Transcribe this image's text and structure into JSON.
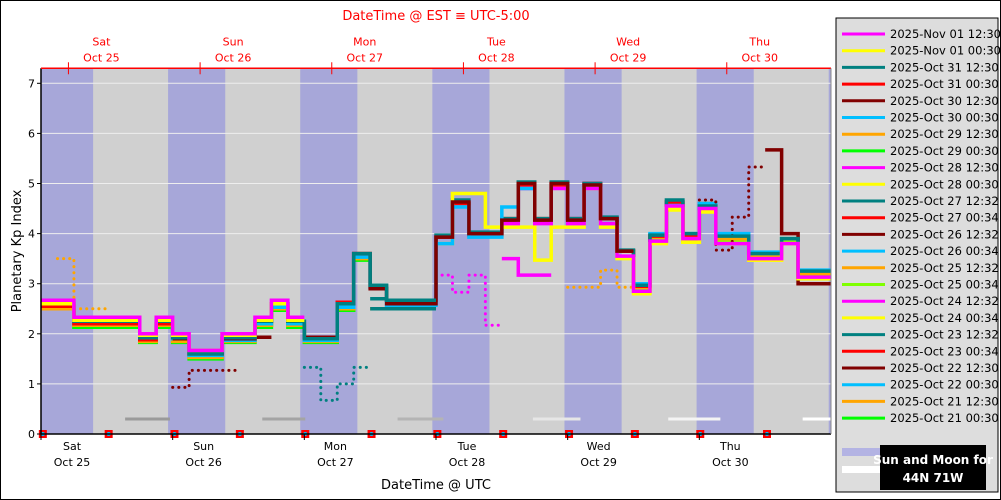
{
  "chart_data": {
    "type": "line",
    "step": true,
    "top_title": "DateTime @ EST ≡ UTC-5:00",
    "xlabel": "DateTime @ UTC",
    "ylabel": "Planetary Kp Index",
    "ylim": [
      0,
      7.3
    ],
    "xlim": [
      "2025-10-25T00:00Z",
      "2025-10-31T00:00Z"
    ],
    "yticks": [
      "0",
      "1",
      "2",
      "3",
      "4",
      "5",
      "6",
      "7"
    ],
    "grid": "horizontal",
    "legend_position": "right",
    "bottom_ticks": [
      {
        "time": "2025-10-25T00:00Z",
        "day": "Sat",
        "date": "Oct 25"
      },
      {
        "time": "2025-10-26T00:00Z",
        "day": "Sun",
        "date": "Oct 26"
      },
      {
        "time": "2025-10-27T00:00Z",
        "day": "Mon",
        "date": "Oct 27"
      },
      {
        "time": "2025-10-28T00:00Z",
        "day": "Tue",
        "date": "Oct 28"
      },
      {
        "time": "2025-10-29T00:00Z",
        "day": "Wed",
        "date": "Oct 29"
      },
      {
        "time": "2025-10-30T00:00Z",
        "day": "Thu",
        "date": "Oct 30"
      }
    ],
    "top_ticks": [
      {
        "time": "2025-10-25T05:00Z",
        "day": "Sat",
        "date": "Oct 25"
      },
      {
        "time": "2025-10-26T05:00Z",
        "day": "Sun",
        "date": "Oct 26"
      },
      {
        "time": "2025-10-27T05:00Z",
        "day": "Mon",
        "date": "Oct 27"
      },
      {
        "time": "2025-10-28T05:00Z",
        "day": "Tue",
        "date": "Oct 28"
      },
      {
        "time": "2025-10-29T05:00Z",
        "day": "Wed",
        "date": "Oct 29"
      },
      {
        "time": "2025-10-30T05:00Z",
        "day": "Thu",
        "date": "Oct 30"
      }
    ],
    "colors": {
      "plot_bg": "#d0d0d0",
      "night": "#a7a7d9",
      "top_axis": "#ff0000",
      "grid": "#eeeeee"
    },
    "night_bands": [
      [
        "2025-10-25T00:00Z",
        "2025-10-25T09:30Z"
      ],
      [
        "2025-10-25T23:10Z",
        "2025-10-26T09:35Z"
      ],
      [
        "2025-10-26T23:15Z",
        "2025-10-27T09:40Z"
      ],
      [
        "2025-10-27T23:20Z",
        "2025-10-28T09:45Z"
      ],
      [
        "2025-10-28T23:25Z",
        "2025-10-29T09:50Z"
      ],
      [
        "2025-10-29T23:30Z",
        "2025-10-30T09:55Z"
      ],
      [
        "2025-10-30T23:35Z",
        "2025-10-31T00:00Z"
      ]
    ],
    "moon_bars": [
      {
        "start": "2025-10-25T15:20Z",
        "end": "2025-10-25T23:30Z",
        "color": "#9a9a9a"
      },
      {
        "start": "2025-10-26T16:20Z",
        "end": "2025-10-27T00:10Z",
        "color": "#a4a4a4"
      },
      {
        "start": "2025-10-27T17:00Z",
        "end": "2025-10-28T01:20Z",
        "color": "#b4b4b4"
      },
      {
        "start": "2025-10-28T17:40Z",
        "end": "2025-10-29T02:20Z",
        "color": "#e6e6e6"
      },
      {
        "start": "2025-10-29T18:20Z",
        "end": "2025-10-30T03:50Z",
        "color": "#f4f4f4"
      },
      {
        "start": "2025-10-30T18:50Z",
        "end": "2025-10-31T00:00Z",
        "color": "#ffffff"
      }
    ],
    "markers": [
      "2025-10-25T00:20Z",
      "2025-10-25T12:20Z",
      "2025-10-26T00:20Z",
      "2025-10-26T12:15Z",
      "2025-10-27T00:10Z",
      "2025-10-27T12:15Z",
      "2025-10-28T00:15Z",
      "2025-10-28T12:15Z",
      "2025-10-29T00:15Z",
      "2025-10-29T12:15Z",
      "2025-10-30T00:10Z",
      "2025-10-30T12:20Z"
    ],
    "series": [
      {
        "name": "2025-Nov 01 12:30",
        "color": "#ff00ff",
        "segments": [
          {
            "start": "2025-10-25T00:00Z",
            "style": "solid",
            "values": [
              2.67,
              2.67,
              2.33,
              2.33,
              2.33,
              2.33,
              2.0,
              2.33,
              2.0,
              1.67,
              1.67,
              2.0,
              2.0,
              2.33,
              2.67,
              2.33
            ]
          }
        ]
      },
      {
        "name": "2025-Nov 01 00:30",
        "color": "#ffff00",
        "segments": [
          {
            "start": "2025-10-25T00:00Z",
            "style": "solid",
            "values": [
              2.6,
              2.6,
              2.27,
              2.27,
              2.27,
              2.27,
              1.97,
              2.27,
              1.97,
              1.67,
              1.67,
              1.97,
              1.97,
              2.27,
              2.6,
              2.27
            ]
          }
        ]
      },
      {
        "name": "2025-Oct 31 12:30",
        "color": "#008080",
        "segments": [
          {
            "start": "2025-10-25T00:00Z",
            "style": "solid",
            "values": [
              2.6,
              2.6,
              2.25,
              2.25,
              2.25,
              2.25,
              1.92,
              2.25,
              1.92,
              1.6,
              1.6,
              1.92,
              1.92,
              2.25,
              2.6,
              2.25,
              1.9,
              1.9,
              2.6,
              3.6,
              2.97,
              2.67,
              2.67,
              2.67
            ]
          }
        ]
      },
      {
        "name": "2025-Oct 31 00:30",
        "color": "#ff0000",
        "segments": [
          {
            "start": "2025-10-25T00:00Z",
            "style": "solid",
            "values": [
              2.55,
              2.55,
              2.2,
              2.2,
              2.2,
              2.2,
              1.88,
              2.2
            ]
          }
        ]
      },
      {
        "name": "2025-Oct 30 12:30",
        "color": "#800000",
        "segments": [
          {
            "start": "2025-10-26T00:00Z",
            "style": "solid",
            "values": [
              1.9,
              1.6,
              1.6,
              1.9,
              1.9,
              2.25,
              2.6,
              2.25,
              1.93,
              1.93,
              2.6,
              3.6,
              2.9,
              2.6,
              2.6,
              2.6,
              3.93,
              4.63,
              4.0,
              4.0,
              4.27,
              5.0,
              4.27,
              5.0,
              4.27,
              4.97,
              4.3,
              3.65
            ]
          }
        ]
      },
      {
        "name": "2025-Oct 30 00:30",
        "color": "#00bfff",
        "segments": [
          {
            "start": "2025-10-25T00:00Z",
            "style": "solid",
            "values": [
              2.55,
              2.55,
              2.2,
              2.2,
              2.2,
              2.2,
              1.9,
              2.2,
              1.9,
              1.57,
              1.57,
              1.87,
              1.87,
              2.2,
              2.53,
              2.2,
              1.87,
              1.87,
              2.53,
              3.53,
              2.93,
              2.57,
              2.57,
              2.57,
              3.8,
              4.53,
              3.93,
              3.93,
              4.53,
              4.9
            ]
          }
        ]
      },
      {
        "name": "2025-Oct 29 12:30",
        "color": "#ffa500",
        "segments": [
          {
            "start": "2025-10-25T00:00Z",
            "style": "solid",
            "values": [
              2.5,
              2.5,
              2.17,
              2.17,
              2.17,
              2.17,
              1.85,
              2.17,
              1.85,
              1.53,
              1.53,
              1.85,
              1.85,
              2.17,
              2.5,
              2.17,
              1.85,
              1.85,
              2.5,
              3.5
            ]
          }
        ]
      },
      {
        "name": "2025-Oct 29 00:30",
        "color": "#00ff00",
        "segments": [
          {
            "start": "2025-10-25T00:00Z",
            "style": "solid",
            "values": [
              2.5,
              2.5,
              2.13,
              2.13,
              2.13,
              2.13,
              1.83,
              2.13,
              1.83,
              1.5,
              1.5,
              1.83,
              1.83,
              2.13,
              2.47,
              2.13,
              1.83,
              1.83,
              2.47,
              3.47
            ]
          }
        ]
      },
      {
        "name": "2025-Oct 28 12:30",
        "color": "#ff00ff",
        "segments": [
          {
            "start": "2025-10-28T12:00Z",
            "style": "solid",
            "values": [
              4.2,
              4.9,
              4.2,
              4.9,
              4.2,
              4.9,
              4.2,
              3.55,
              2.85,
              3.85,
              4.55,
              3.9,
              4.5,
              3.8,
              3.8,
              3.5,
              3.5,
              3.8,
              3.13,
              3.13
            ]
          }
        ]
      },
      {
        "name": "2025-Oct 28 00:30",
        "color": "#ffff00",
        "segments": [
          {
            "start": "2025-10-28T00:00Z",
            "style": "solid",
            "values": [
              3.8,
              4.8,
              4.8,
              4.13,
              4.13,
              4.13,
              3.47,
              4.13,
              4.13,
              4.9,
              4.13,
              3.5,
              2.8,
              3.8,
              4.5,
              3.83,
              4.43,
              3.8,
              3.8,
              3.47,
              3.47,
              3.8,
              3.1,
              3.1
            ]
          }
        ]
      },
      {
        "name": "2025-Oct 27 12:32",
        "color": "#008080",
        "segments": [
          {
            "start": "2025-10-27T12:00Z",
            "style": "solid",
            "values": [
              2.7,
              2.67,
              2.67,
              2.67,
              3.97,
              4.67,
              4.03,
              4.03,
              4.3,
              5.03,
              4.3,
              5.03,
              4.3,
              5.0,
              4.33,
              3.67,
              2.97,
              3.97,
              4.67,
              4.0,
              4.55,
              3.95,
              3.95,
              3.6,
              3.6,
              3.9,
              3.25,
              3.25
            ]
          }
        ]
      },
      {
        "name": "2025-Oct 27 00:34",
        "color": "#ff0000",
        "segments": [
          {
            "start": "2025-10-27T00:00Z",
            "style": "solid",
            "values": [
              1.93,
              1.93,
              2.63,
              3.6,
              2.93,
              2.67,
              2.67,
              2.67,
              3.93,
              4.6,
              3.97,
              3.97,
              4.27,
              4.97,
              4.27,
              4.97,
              4.27,
              5.0,
              4.3,
              3.65,
              2.95,
              3.95,
              4.63,
              3.97
            ]
          }
        ]
      },
      {
        "name": "2025-Oct 26 12:32",
        "color": "#800000",
        "segments": [
          {
            "start": "2025-10-30T00:00Z",
            "style": "dotted",
            "values": [
              4.67,
              3.67,
              4.33,
              5.33
            ]
          },
          {
            "start": "2025-10-30T12:00Z",
            "style": "solid",
            "values": [
              5.67,
              4.0,
              3.0,
              3.0
            ]
          }
        ]
      },
      {
        "name": "2025-Oct 26 00:34",
        "color": "#00bfff",
        "segments": [
          {
            "start": "2025-10-29T12:00Z",
            "style": "solid",
            "values": [
              3.0,
              4.0,
              4.6,
              4.0,
              4.6,
              4.0,
              4.0,
              3.63,
              3.63,
              3.9,
              3.27,
              3.27
            ]
          }
        ]
      },
      {
        "name": "2025-Oct 25 12:32",
        "color": "#ffa500",
        "segments": [
          {
            "start": "2025-10-29T00:00Z",
            "style": "dotted",
            "values": [
              2.93,
              2.93,
              3.27,
              2.93
            ]
          },
          {
            "start": "2025-10-29T12:00Z",
            "style": "solid",
            "values": [
              2.93,
              3.93,
              4.6,
              3.93,
              4.6,
              3.9,
              3.9,
              3.53,
              3.53,
              3.9,
              3.2,
              3.2
            ]
          }
        ]
      },
      {
        "name": "2025-Oct 25 00:34",
        "color": "#7fff00",
        "segments": [
          {
            "start": "2025-10-29T12:00Z",
            "style": "solid",
            "values": [
              2.87,
              3.87,
              4.53,
              3.87,
              4.53,
              3.87,
              3.87,
              3.53,
              3.53,
              3.83,
              3.17,
              3.17
            ]
          }
        ]
      },
      {
        "name": "2025-Oct 24 12:32",
        "color": "#ff00ff",
        "segments": [
          {
            "start": "2025-10-28T00:00Z",
            "style": "dotted",
            "values": [
              3.17,
              2.83,
              3.17,
              2.17
            ]
          },
          {
            "start": "2025-10-28T12:00Z",
            "style": "solid",
            "values": [
              3.5,
              3.17,
              3.17
            ]
          }
        ]
      },
      {
        "name": "2025-Oct 24 00:34",
        "color": "#ffff00",
        "segments": [
          {
            "start": "2025-10-29T12:00Z",
            "style": "solid",
            "values": [
              2.83,
              3.83,
              4.47,
              3.83,
              4.47,
              3.8,
              3.8,
              3.47,
              3.47,
              3.8,
              3.13,
              3.13
            ]
          }
        ]
      },
      {
        "name": "2025-Oct 23 12:32",
        "color": "#008080",
        "segments": [
          {
            "start": "2025-10-27T00:00Z",
            "style": "dotted",
            "values": [
              1.33,
              0.67,
              1.0,
              1.33
            ]
          },
          {
            "start": "2025-10-27T12:00Z",
            "style": "solid",
            "values": [
              2.5,
              2.5,
              2.5,
              2.5
            ]
          }
        ]
      },
      {
        "name": "2025-Oct 23 00:34",
        "color": "#ff0000",
        "segments": [
          {
            "start": "2025-10-28T12:00Z",
            "style": "solid",
            "values": [
              4.3,
              5.0,
              4.3,
              5.0,
              4.3,
              5.0,
              4.3,
              3.65,
              2.95,
              3.95,
              4.63,
              3.97
            ]
          }
        ]
      },
      {
        "name": "2025-Oct 22 12:30",
        "color": "#800000",
        "segments": [
          {
            "start": "2025-10-26T00:00Z",
            "style": "dotted",
            "values": [
              0.93,
              1.27,
              1.27,
              1.27
            ]
          },
          {
            "start": "2025-10-26T12:00Z",
            "style": "solid",
            "values": [
              1.93,
              1.93
            ]
          }
        ]
      },
      {
        "name": "2025-Oct 22 00:30",
        "color": "#00bfff",
        "segments": [
          {
            "start": "2025-10-27T12:00Z",
            "style": "solid",
            "values": [
              2.9,
              2.57,
              2.57,
              2.57
            ]
          }
        ]
      },
      {
        "name": "2025-Oct 21 12:30",
        "color": "#ffa500",
        "segments": [
          {
            "start": "2025-10-25T03:00Z",
            "style": "dotted",
            "values": [
              3.5,
              2.5,
              2.5
            ]
          },
          {
            "start": "2025-10-27T12:00Z",
            "style": "solid",
            "values": [
              2.5,
              2.5,
              2.5,
              2.5
            ]
          }
        ]
      },
      {
        "name": "2025-Oct 21 00:30",
        "color": "#00ff00",
        "segments": [
          {
            "start": "2025-10-25T09:00Z",
            "style": "solid",
            "values": [
              2.15
            ]
          }
        ]
      }
    ]
  },
  "legend_footer": {
    "sun_moon_line1": "Sun and Moon for",
    "sun_moon_line2": "44N 71W",
    "sun_swatch_color": "#b3b3e3",
    "moon_swatch_color": "#ffffff"
  }
}
